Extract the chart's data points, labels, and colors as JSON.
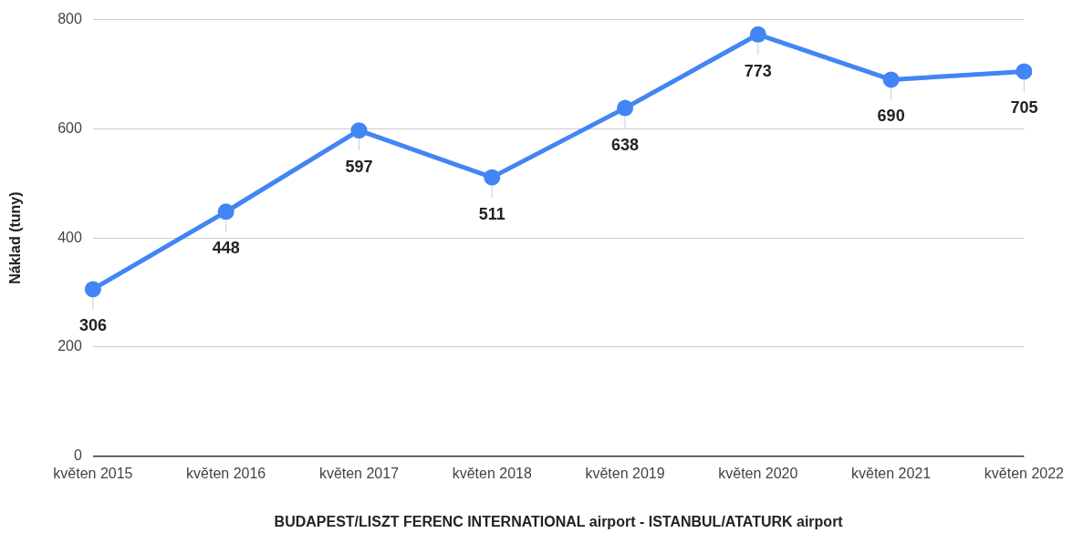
{
  "chart_data": {
    "type": "line",
    "xlabel": "BUDAPEST/LISZT FERENC INTERNATIONAL airport - ISTANBUL/ATATURK airport",
    "ylabel": "Náklad (tuny)",
    "categories": [
      "květen 2015",
      "květen 2016",
      "květen 2017",
      "květen 2018",
      "květen 2019",
      "květen 2020",
      "květen 2021",
      "květen 2022"
    ],
    "series": [
      {
        "color": "#4285f4",
        "values": [
          306,
          448,
          597,
          511,
          638,
          773,
          690,
          705
        ]
      }
    ],
    "ylim": [
      0,
      800
    ],
    "yticks": [
      0,
      200,
      400,
      600,
      800
    ],
    "grid": "y",
    "legend": false,
    "marker": "circle",
    "data_labels": true
  }
}
